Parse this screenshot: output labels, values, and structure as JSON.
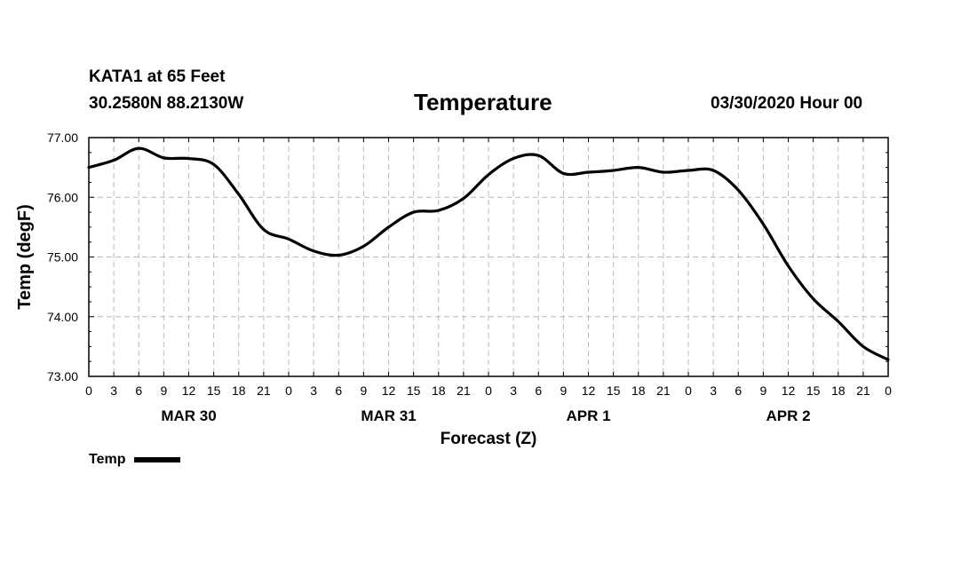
{
  "header": {
    "station": "KATA1 at 65 Feet",
    "coords": "30.2580N 88.2130W",
    "title": "Temperature",
    "run": "03/30/2020 Hour 00"
  },
  "legend": {
    "label": "Temp"
  },
  "chart_data": {
    "type": "line",
    "title": "Temperature",
    "xlabel": "Forecast (Z)",
    "ylabel": "Temp (degF)",
    "ylim": [
      73.0,
      77.0
    ],
    "yticks": [
      "73.00",
      "74.00",
      "75.00",
      "76.00",
      "77.00"
    ],
    "xlim": [
      0,
      96
    ],
    "xtick_step_hours": 3,
    "xtick_labels": [
      "0",
      "3",
      "6",
      "9",
      "12",
      "15",
      "18",
      "21",
      "0",
      "3",
      "6",
      "9",
      "12",
      "15",
      "18",
      "21",
      "0",
      "3",
      "6",
      "9",
      "12",
      "15",
      "18",
      "21",
      "0",
      "3",
      "6",
      "9",
      "12",
      "15",
      "18",
      "21",
      "0"
    ],
    "day_labels": [
      "MAR 30",
      "MAR 31",
      "APR 1",
      "APR 2"
    ],
    "grid": true,
    "legend_position": "bottom-left",
    "colors": {
      "line": "#000000",
      "grid": "#bbbbbb"
    },
    "series": [
      {
        "name": "Temp",
        "x": [
          0,
          3,
          6,
          9,
          12,
          15,
          18,
          21,
          24,
          27,
          30,
          33,
          36,
          39,
          42,
          45,
          48,
          51,
          54,
          57,
          60,
          63,
          66,
          69,
          72,
          75,
          78,
          81,
          84,
          87,
          90,
          93,
          96
        ],
        "values": [
          76.5,
          76.62,
          76.82,
          76.66,
          76.65,
          76.55,
          76.05,
          75.46,
          75.3,
          75.1,
          75.03,
          75.18,
          75.5,
          75.75,
          75.78,
          75.98,
          76.38,
          76.65,
          76.7,
          76.4,
          76.42,
          76.45,
          76.5,
          76.42,
          76.45,
          76.45,
          76.12,
          75.55,
          74.85,
          74.3,
          73.92,
          73.5,
          73.28
        ]
      }
    ]
  }
}
